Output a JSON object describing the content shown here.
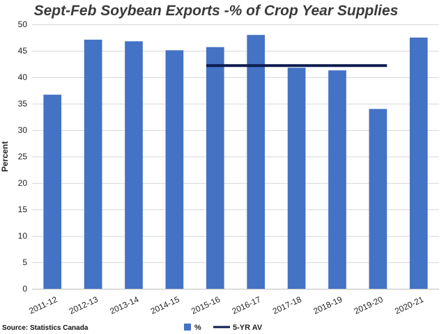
{
  "chart_data": {
    "type": "bar",
    "title": "Sept-Feb Soybean Exports -% of Crop Year Supplies",
    "ylabel": "Percent",
    "xlabel": "",
    "ylim": [
      0,
      50
    ],
    "yticks": [
      0,
      5,
      10,
      15,
      20,
      25,
      30,
      35,
      40,
      45,
      50
    ],
    "grid": true,
    "legend_position": "bottom",
    "categories": [
      "2011-12",
      "2012-13",
      "2013-14",
      "2014-15",
      "2015-16",
      "2016-17",
      "2017-18",
      "2018-19",
      "2019-20",
      "2020-21"
    ],
    "series": [
      {
        "name": "%",
        "type": "bar",
        "color": "#4472c4",
        "values": [
          36.7,
          47.1,
          46.8,
          45.1,
          45.7,
          48.0,
          41.8,
          41.3,
          34.0,
          47.5
        ]
      },
      {
        "name": "5-YR AV",
        "type": "line",
        "color": "#0d1b4f",
        "values": [
          null,
          null,
          null,
          null,
          42.2,
          42.2,
          42.2,
          42.2,
          42.2,
          null
        ]
      }
    ],
    "source": "Source: Statistics Canada"
  }
}
